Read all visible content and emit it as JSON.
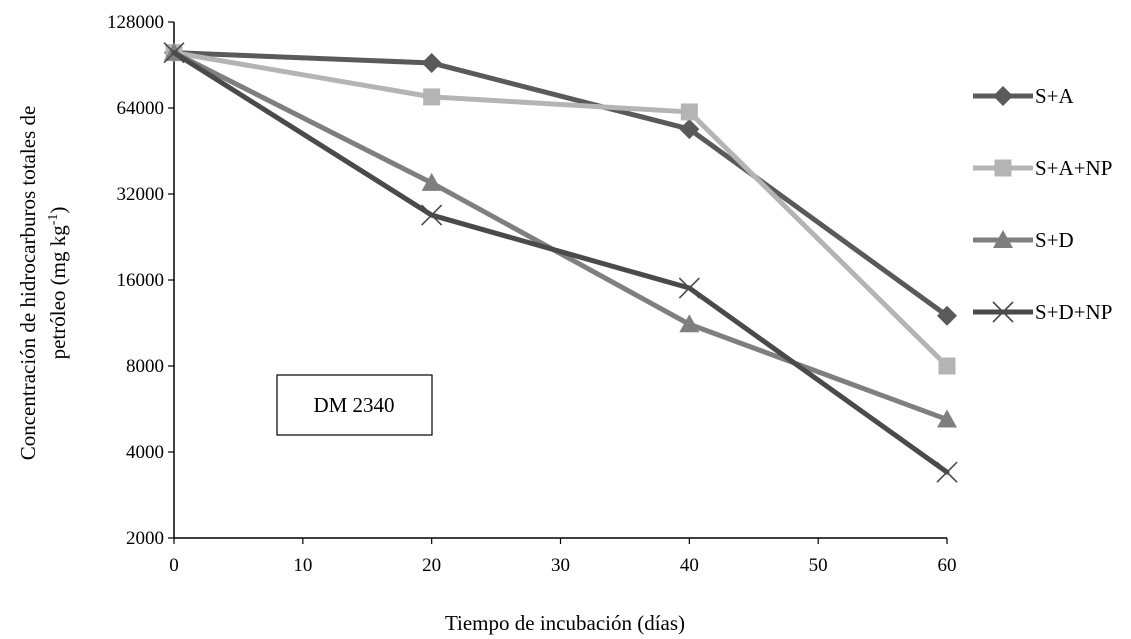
{
  "chart_data": {
    "type": "line",
    "y_scale": "log2",
    "grid": false,
    "legend_position": "right",
    "x": [
      0,
      20,
      40,
      60
    ],
    "xlim": [
      0,
      60
    ],
    "x_ticks": [
      "0",
      "10",
      "20",
      "30",
      "40",
      "50",
      "60"
    ],
    "ylim": [
      2000,
      128000
    ],
    "y_ticks": [
      "128000",
      "64000",
      "32000",
      "16000",
      "8000",
      "4000",
      "2000"
    ],
    "xlabel": "Tiempo de incubación (días)",
    "ylabel_line1": "Concentración de hidrocarburos totales de",
    "ylabel_line2_pre": "petróleo (mg kg",
    "ylabel_sup": "-1",
    "ylabel_line2_post": ")",
    "annotation": "DM 2340",
    "series": [
      {
        "name": "S+A",
        "marker": "diamond",
        "color": "#5a5a5a",
        "values": [
          100000,
          92000,
          54000,
          12000
        ]
      },
      {
        "name": "S+A+NP",
        "marker": "square",
        "color": "#b4b4b4",
        "values": [
          100000,
          70000,
          62000,
          8000
        ]
      },
      {
        "name": "S+D",
        "marker": "triangle",
        "color": "#7f7f7f",
        "values": [
          100000,
          35000,
          11200,
          5200
        ]
      },
      {
        "name": "S+D+NP",
        "marker": "x",
        "color": "#4a4a4a",
        "values": [
          100000,
          27000,
          15000,
          3400
        ]
      }
    ]
  }
}
